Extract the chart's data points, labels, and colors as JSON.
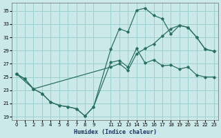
{
  "xlabel": "Humidex (Indice chaleur)",
  "bg_color": "#cce9e9",
  "grid_color": "#9ecece",
  "line_color": "#2a7060",
  "xlim": [
    -0.5,
    23.5
  ],
  "ylim": [
    18.5,
    36.2
  ],
  "xticks": [
    0,
    1,
    2,
    3,
    4,
    5,
    6,
    7,
    8,
    9,
    11,
    12,
    13,
    14,
    15,
    16,
    17,
    18,
    19,
    20,
    21,
    22,
    23
  ],
  "yticks": [
    19,
    21,
    23,
    25,
    27,
    29,
    31,
    33,
    35
  ],
  "line1_x": [
    0,
    1,
    2,
    3,
    4,
    5,
    6,
    7,
    8,
    9,
    11,
    12,
    13,
    14,
    15,
    16,
    17,
    18,
    19,
    20,
    21,
    22,
    23
  ],
  "line1_y": [
    25.5,
    24.7,
    23.2,
    22.5,
    21.2,
    20.7,
    20.5,
    20.2,
    19.1,
    20.5,
    27.2,
    27.5,
    26.5,
    29.3,
    27.1,
    27.6,
    26.7,
    26.8,
    26.2,
    26.5,
    25.3,
    25.0,
    25.0
  ],
  "line2_x": [
    0,
    1,
    2,
    3,
    4,
    5,
    6,
    7,
    8,
    9,
    11,
    12,
    13,
    14,
    15,
    16,
    17,
    18,
    19,
    20,
    21,
    22,
    23
  ],
  "line2_y": [
    25.5,
    24.7,
    23.2,
    22.5,
    21.2,
    20.7,
    20.5,
    20.2,
    19.1,
    20.5,
    29.2,
    32.3,
    31.8,
    35.1,
    35.4,
    34.3,
    33.8,
    31.5,
    32.8,
    32.5,
    31.0,
    29.2,
    28.9
  ],
  "line3_x": [
    0,
    2,
    11,
    12,
    13,
    14,
    15,
    16,
    17,
    18,
    19,
    20,
    21,
    22,
    23
  ],
  "line3_y": [
    25.5,
    23.2,
    26.5,
    27.0,
    26.0,
    28.5,
    29.3,
    30.0,
    31.2,
    32.3,
    32.8,
    32.5,
    31.0,
    29.2,
    28.9
  ]
}
